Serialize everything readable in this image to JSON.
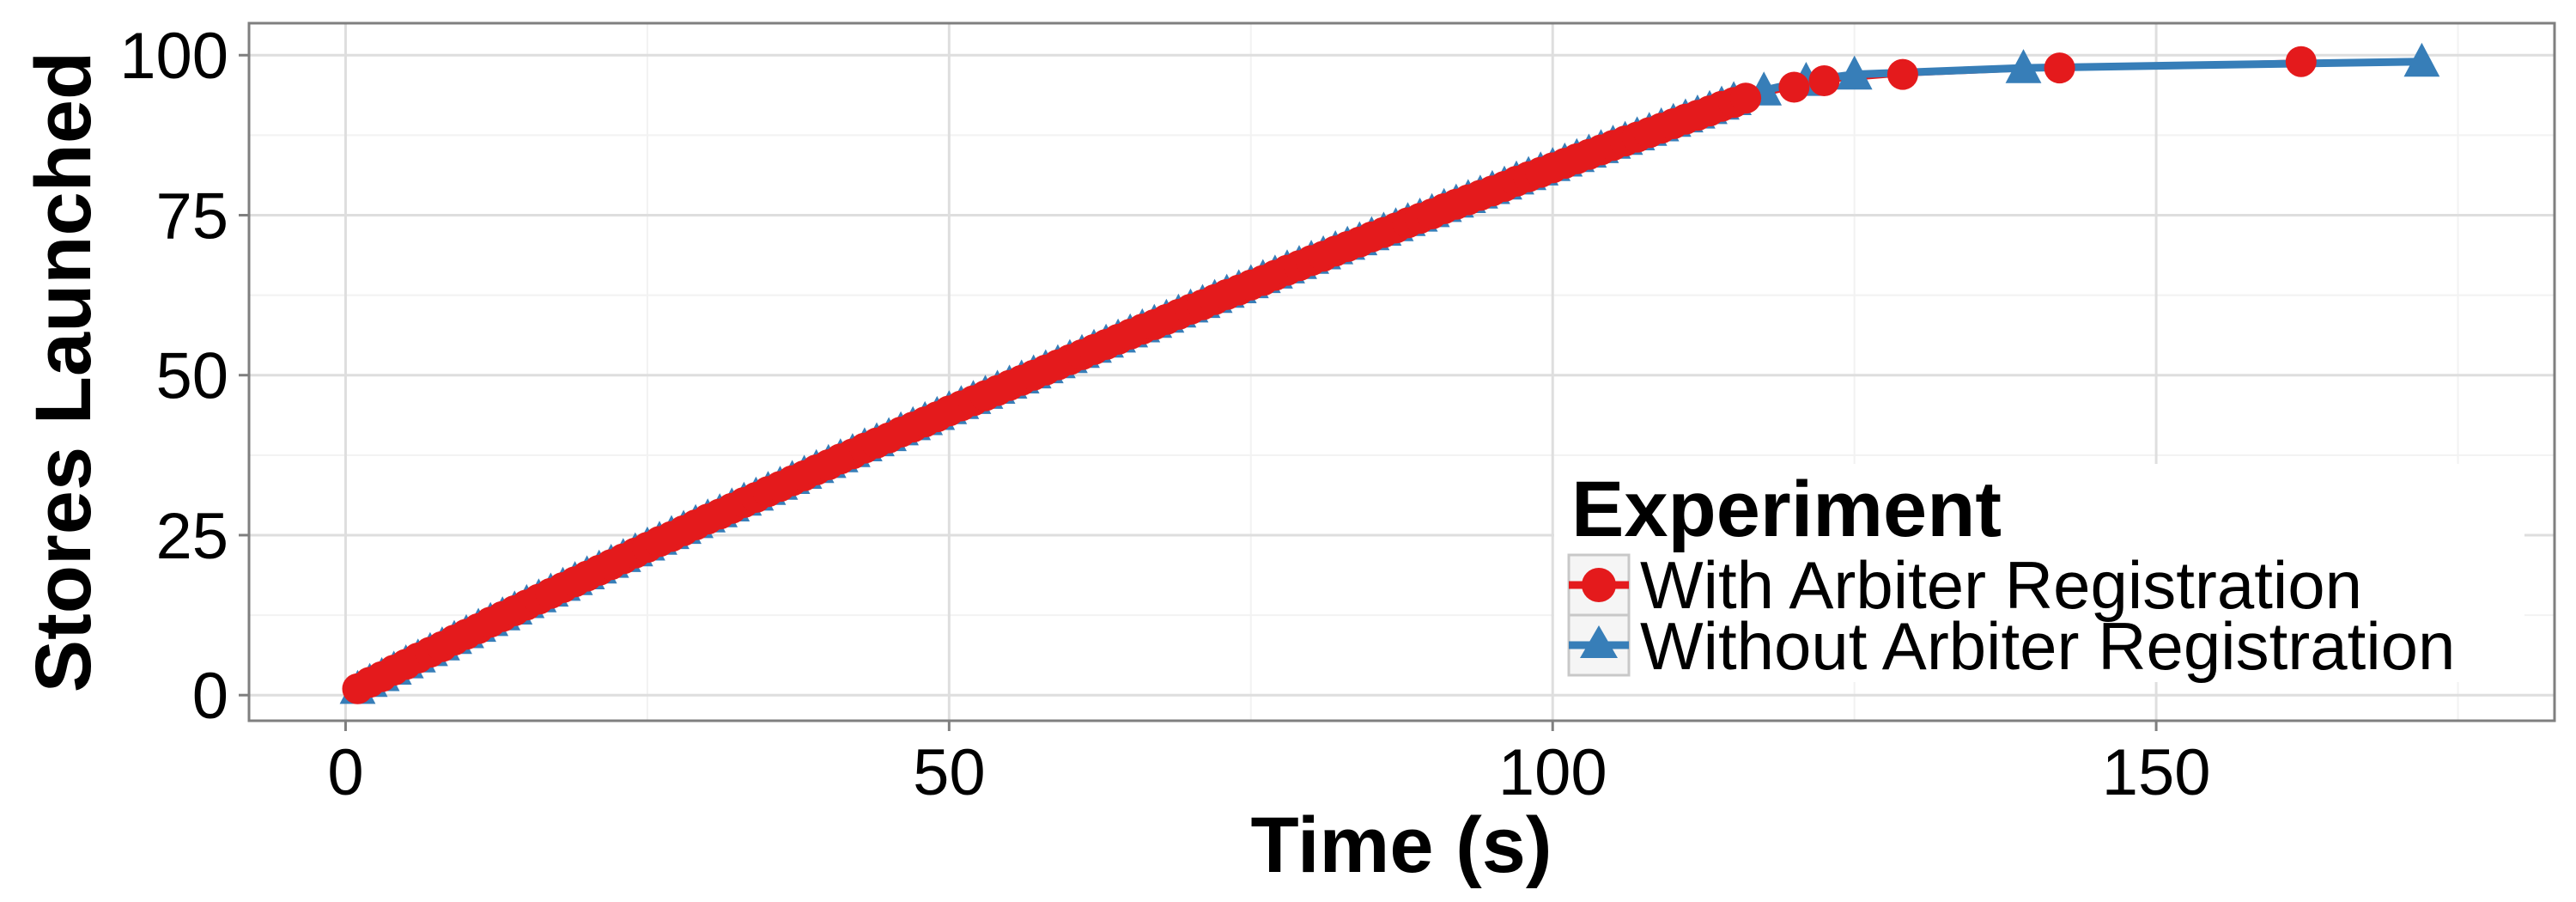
{
  "chart_data": {
    "type": "line",
    "xlabel": "Time (s)",
    "ylabel": "Stores Launched",
    "xlim": [
      -8,
      183
    ],
    "ylim": [
      -4,
      105
    ],
    "x_ticks": [
      "0",
      "50",
      "100",
      "150"
    ],
    "x_tick_values": [
      0,
      50,
      100,
      150
    ],
    "y_ticks": [
      "0",
      "25",
      "50",
      "75",
      "100"
    ],
    "y_tick_values": [
      0,
      25,
      50,
      75,
      100
    ],
    "grid": true,
    "legend": {
      "title": "Experiment",
      "position": "bottom-right"
    },
    "series": [
      {
        "name": "With Arbiter Registration",
        "color": "#e41a1c",
        "marker": "circle",
        "x": [
          1,
          2,
          3,
          4,
          5,
          6,
          7,
          8,
          9,
          10,
          11,
          12,
          13,
          14,
          15,
          16,
          17,
          18,
          19,
          20,
          21,
          22,
          23,
          24,
          25,
          26,
          27,
          28,
          29,
          30,
          31,
          32,
          33,
          34,
          35,
          36,
          37,
          38,
          39,
          40,
          41,
          42,
          43,
          44,
          45,
          46,
          47,
          48,
          49,
          50,
          51,
          52,
          53,
          54,
          55,
          56,
          57,
          58,
          59,
          60,
          61,
          62,
          63,
          64,
          65,
          66,
          67,
          68,
          69,
          70,
          71,
          72,
          73,
          74,
          75,
          76,
          77,
          78,
          79,
          80,
          81,
          82,
          83,
          84,
          85,
          86,
          87,
          88,
          89,
          90,
          91,
          92,
          93,
          94,
          95,
          96,
          97,
          98,
          99,
          100,
          101,
          102,
          103,
          104,
          105,
          106,
          107,
          108,
          109,
          110,
          111,
          112,
          113,
          114,
          115,
          116,
          120,
          122.5,
          129,
          142,
          162
        ],
        "y": [
          1,
          2,
          2.9,
          3.9,
          4.8,
          5.8,
          6.7,
          7.6,
          8.6,
          9.5,
          10.4,
          11.4,
          12.3,
          13.2,
          14.1,
          15,
          15.9,
          16.8,
          17.7,
          18.6,
          19.5,
          20.4,
          21.3,
          22.2,
          23.1,
          24,
          24.8,
          25.7,
          26.6,
          27.5,
          28.3,
          29.2,
          30.1,
          30.9,
          31.8,
          32.6,
          33.5,
          34.3,
          35.2,
          36,
          36.9,
          37.7,
          38.6,
          39.4,
          40.2,
          41.1,
          41.9,
          42.7,
          43.5,
          44.4,
          45.2,
          46,
          46.8,
          47.6,
          48.4,
          49.2,
          50,
          50.8,
          51.6,
          52.4,
          53.2,
          54,
          54.8,
          55.6,
          56.4,
          57.2,
          57.9,
          58.7,
          59.5,
          60.3,
          61,
          61.8,
          62.6,
          63.3,
          64.1,
          64.8,
          65.6,
          66.4,
          67.1,
          67.9,
          68.6,
          69.4,
          70.1,
          70.8,
          71.6,
          72.3,
          73,
          73.8,
          74.5,
          75.2,
          76,
          76.7,
          77.4,
          78.1,
          78.8,
          79.5,
          80.3,
          81,
          81.7,
          82.4,
          83.1,
          83.8,
          84.5,
          85.2,
          85.9,
          86.6,
          87.2,
          87.9,
          88.6,
          89.3,
          90,
          90.6,
          91.3,
          92,
          92.6,
          93.3,
          95,
          96,
          97,
          98,
          99
        ]
      },
      {
        "name": "Without Arbiter Registration",
        "color": "#377eb8",
        "marker": "triangle",
        "x": [
          1,
          2,
          3,
          4,
          5,
          6,
          7,
          8,
          9,
          10,
          11,
          12,
          13,
          14,
          15,
          16,
          17,
          18,
          19,
          20,
          21,
          22,
          23,
          24,
          25,
          26,
          27,
          28,
          29,
          30,
          31,
          32,
          33,
          34,
          35,
          36,
          37,
          38,
          39,
          40,
          41,
          42,
          43,
          44,
          45,
          46,
          47,
          48,
          49,
          50,
          51,
          52,
          53,
          54,
          55,
          56,
          57,
          58,
          59,
          60,
          61,
          62,
          63,
          64,
          65,
          66,
          67,
          68,
          69,
          70,
          71,
          72,
          73,
          74,
          75,
          76,
          77,
          78,
          79,
          80,
          81,
          82,
          83,
          84,
          85,
          86,
          87,
          88,
          89,
          90,
          91,
          92,
          93,
          94,
          95,
          96,
          97,
          98,
          99,
          100,
          101,
          102,
          103,
          104,
          105,
          106,
          107,
          108,
          109,
          110,
          111,
          112,
          113,
          114,
          115,
          117.5,
          121,
          125,
          139,
          172
        ],
        "y": [
          1,
          2.1,
          3,
          4,
          5,
          5.9,
          6.9,
          7.8,
          8.8,
          9.7,
          10.7,
          11.6,
          12.5,
          13.4,
          14.4,
          15.3,
          16.2,
          17.1,
          18,
          18.9,
          19.8,
          20.7,
          21.6,
          22.5,
          23.4,
          24.3,
          25.2,
          26,
          26.9,
          27.8,
          28.6,
          29.5,
          30.4,
          31.2,
          32.1,
          32.9,
          33.8,
          34.6,
          35.5,
          36.3,
          37.2,
          38,
          38.9,
          39.7,
          40.5,
          41.4,
          42.2,
          43,
          43.8,
          44.7,
          45.5,
          46.3,
          47.1,
          47.9,
          48.7,
          49.5,
          50.3,
          51.1,
          51.9,
          52.7,
          53.5,
          54.3,
          55.1,
          55.9,
          56.7,
          57.5,
          58.2,
          59,
          59.8,
          60.6,
          61.3,
          62.1,
          62.9,
          63.6,
          64.4,
          65.2,
          65.9,
          66.7,
          67.4,
          68.2,
          68.9,
          69.7,
          70.4,
          71.1,
          71.9,
          72.6,
          73.3,
          74.1,
          74.8,
          75.5,
          76.3,
          77,
          77.7,
          78.4,
          79.1,
          79.8,
          80.6,
          81.3,
          82,
          82.7,
          83.4,
          84.1,
          84.8,
          85.5,
          86.2,
          86.8,
          87.5,
          88.2,
          88.9,
          89.6,
          90.3,
          90.9,
          91.6,
          92.3,
          93,
          94.5,
          96,
          97,
          98,
          99
        ]
      }
    ]
  }
}
